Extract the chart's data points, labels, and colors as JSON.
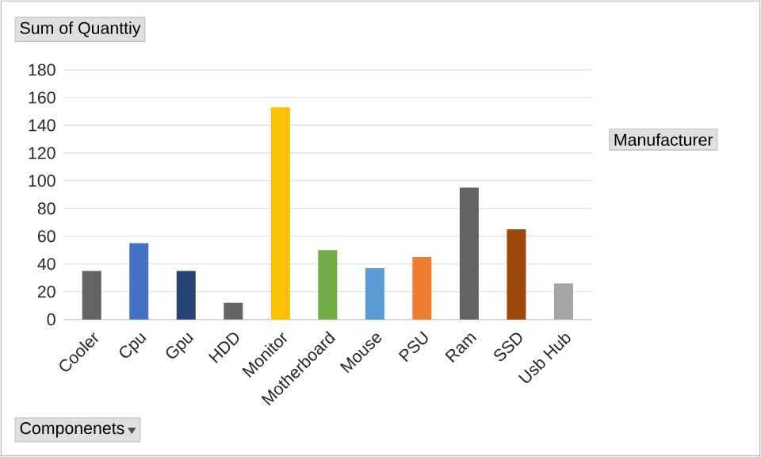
{
  "chart_data": {
    "type": "bar",
    "title": "Sum of Quanttiy",
    "xlabel": "Componenets",
    "annotations": [
      "Manufacturer"
    ],
    "categories": [
      "Cooler",
      "Cpu",
      "Gpu",
      "HDD",
      "Monitor",
      "Motherboard",
      "Mouse",
      "PSU",
      "Ram",
      "SSD",
      "Usb Hub"
    ],
    "values": [
      35,
      55,
      35,
      12,
      153,
      50,
      37,
      45,
      95,
      65,
      26
    ],
    "colors": [
      "#636363",
      "#4472c4",
      "#264478",
      "#636363",
      "#ffc000",
      "#70ad47",
      "#5b9bd5",
      "#ed7d31",
      "#636363",
      "#9e480e",
      "#a5a5a5"
    ],
    "ylim": [
      0,
      180
    ],
    "yticks": [
      0,
      20,
      40,
      60,
      80,
      100,
      120,
      140,
      160,
      180
    ],
    "grid": "y"
  }
}
